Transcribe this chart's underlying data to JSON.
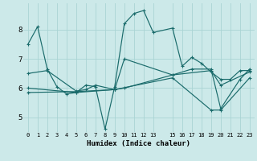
{
  "xlabel": "Humidex (Indice chaleur)",
  "bg_color": "#cce9e9",
  "grid_color": "#aad4d4",
  "line_color": "#1a6b6b",
  "x_ticks": [
    0,
    1,
    2,
    3,
    4,
    5,
    6,
    7,
    8,
    9,
    10,
    11,
    12,
    13,
    15,
    16,
    17,
    18,
    19,
    20,
    21,
    22,
    23
  ],
  "ylim": [
    4.5,
    8.9
  ],
  "xlim": [
    -0.5,
    23.5
  ],
  "yticks": [
    5,
    6,
    7,
    8
  ],
  "line1_x": [
    0,
    1,
    2,
    3,
    4,
    5,
    6,
    7,
    8,
    9,
    10,
    11,
    12,
    13,
    15,
    16,
    17,
    18,
    19,
    20,
    21,
    22,
    23
  ],
  "line1_y": [
    7.5,
    8.1,
    6.65,
    6.05,
    5.8,
    5.85,
    6.1,
    6.05,
    4.6,
    6.05,
    8.2,
    8.55,
    8.65,
    7.9,
    8.05,
    6.75,
    7.05,
    6.85,
    6.55,
    6.3,
    6.3,
    6.6,
    6.6
  ],
  "line2_x": [
    0,
    23
  ],
  "line2_y": [
    6.5,
    6.65
  ],
  "line3_x": [
    0,
    23
  ],
  "line3_y": [
    6.0,
    6.55
  ],
  "line4_x": [
    0,
    23
  ],
  "line4_y": [
    5.85,
    6.35
  ],
  "line2m_x": [
    0,
    2,
    5,
    6,
    7,
    9,
    10,
    15,
    17,
    19,
    20,
    22,
    23
  ],
  "line2m_y": [
    6.5,
    6.6,
    5.9,
    5.95,
    6.1,
    5.95,
    6.0,
    6.45,
    6.65,
    6.65,
    5.3,
    6.3,
    6.65
  ],
  "line3m_x": [
    0,
    5,
    9,
    10,
    15,
    19,
    20,
    23
  ],
  "line3m_y": [
    6.0,
    5.85,
    5.95,
    7.0,
    6.45,
    6.6,
    6.1,
    6.55
  ],
  "line4m_x": [
    0,
    5,
    9,
    15,
    19,
    20,
    23
  ],
  "line4m_y": [
    5.85,
    5.88,
    5.95,
    6.35,
    5.25,
    5.25,
    6.35
  ]
}
